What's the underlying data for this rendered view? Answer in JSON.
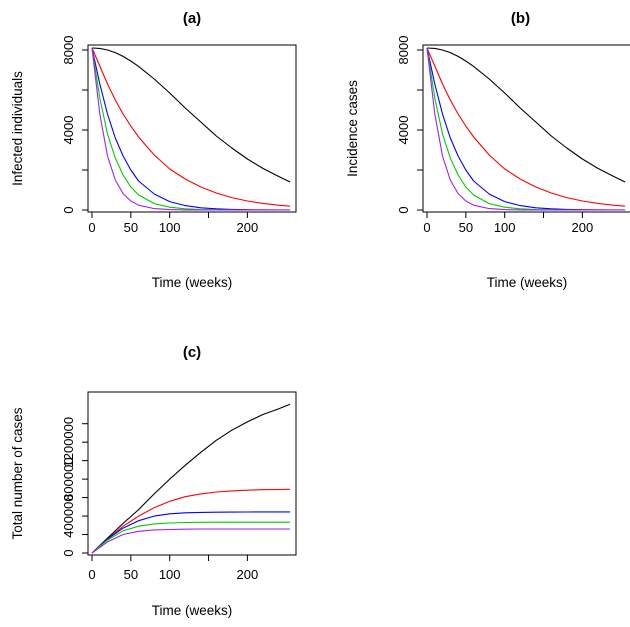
{
  "figure": {
    "colors": {
      "series": [
        "#000000",
        "#ff0000",
        "#0000ff",
        "#00cc00",
        "#a020f0"
      ],
      "axis": "#000000",
      "background": "#ffffff"
    }
  },
  "chart_data": [
    {
      "id": "a",
      "type": "line",
      "title": "(a)",
      "xlabel": "Time (weeks)",
      "ylabel": "Infected individuals",
      "xlim": [
        0,
        260
      ],
      "ylim": [
        0,
        8100
      ],
      "xticks": [
        0,
        50,
        100,
        200
      ],
      "xtick_labels": [
        "0",
        "50",
        "100",
        "200"
      ],
      "yticks": [
        0,
        4000,
        8000
      ],
      "ytick_labels": [
        "0",
        "4000",
        "8000"
      ],
      "grid": false,
      "series": [
        {
          "color": "#000000",
          "x": [
            0,
            10,
            20,
            30,
            40,
            50,
            60,
            80,
            100,
            120,
            140,
            160,
            180,
            200,
            220,
            240,
            255
          ],
          "y": [
            8100,
            8080,
            8000,
            7870,
            7680,
            7450,
            7180,
            6550,
            5850,
            5100,
            4400,
            3700,
            3100,
            2550,
            2080,
            1680,
            1400
          ]
        },
        {
          "color": "#ff0000",
          "x": [
            0,
            10,
            20,
            30,
            40,
            50,
            60,
            80,
            100,
            120,
            140,
            160,
            180,
            200,
            220,
            240,
            255
          ],
          "y": [
            8100,
            7200,
            6300,
            5500,
            4800,
            4200,
            3650,
            2750,
            2050,
            1550,
            1150,
            850,
            620,
            450,
            330,
            240,
            190
          ]
        },
        {
          "color": "#0000ff",
          "x": [
            0,
            10,
            20,
            30,
            40,
            50,
            60,
            80,
            100,
            120,
            140,
            160,
            180,
            200,
            220,
            240,
            255
          ],
          "y": [
            8100,
            6300,
            4800,
            3600,
            2700,
            2000,
            1450,
            800,
            420,
            220,
            110,
            60,
            30,
            15,
            10,
            5,
            5
          ]
        },
        {
          "color": "#00cc00",
          "x": [
            0,
            10,
            20,
            30,
            40,
            50,
            60,
            80,
            100,
            120,
            140,
            160,
            180,
            200,
            220,
            240,
            255
          ],
          "y": [
            8100,
            5600,
            3800,
            2600,
            1750,
            1150,
            750,
            320,
            140,
            60,
            25,
            10,
            5,
            0,
            0,
            0,
            0
          ]
        },
        {
          "color": "#a020f0",
          "x": [
            0,
            10,
            20,
            30,
            40,
            50,
            60,
            80,
            100,
            120,
            140,
            160,
            180,
            200,
            220,
            240,
            255
          ],
          "y": [
            8100,
            4800,
            2700,
            1500,
            820,
            450,
            240,
            70,
            20,
            5,
            0,
            0,
            0,
            0,
            0,
            0,
            0
          ]
        }
      ]
    },
    {
      "id": "b",
      "type": "line",
      "title": "(b)",
      "xlabel": "Time (weeks)",
      "ylabel": "Incidence cases",
      "xlim": [
        0,
        260
      ],
      "ylim": [
        0,
        8100
      ],
      "xticks": [
        0,
        50,
        100,
        200
      ],
      "xtick_labels": [
        "0",
        "50",
        "100",
        "200"
      ],
      "yticks": [
        0,
        4000,
        8000
      ],
      "ytick_labels": [
        "0",
        "4000",
        "8000"
      ],
      "grid": false,
      "series": [
        {
          "color": "#000000",
          "x": [
            0,
            10,
            20,
            30,
            40,
            50,
            60,
            80,
            100,
            120,
            140,
            160,
            180,
            200,
            220,
            240,
            255
          ],
          "y": [
            8100,
            8080,
            8000,
            7870,
            7680,
            7450,
            7180,
            6550,
            5850,
            5100,
            4400,
            3700,
            3100,
            2550,
            2080,
            1680,
            1400
          ]
        },
        {
          "color": "#ff0000",
          "x": [
            0,
            10,
            20,
            30,
            40,
            50,
            60,
            80,
            100,
            120,
            140,
            160,
            180,
            200,
            220,
            240,
            255
          ],
          "y": [
            8100,
            7200,
            6300,
            5500,
            4800,
            4200,
            3650,
            2750,
            2050,
            1550,
            1150,
            850,
            620,
            450,
            330,
            240,
            190
          ]
        },
        {
          "color": "#0000ff",
          "x": [
            0,
            10,
            20,
            30,
            40,
            50,
            60,
            80,
            100,
            120,
            140,
            160,
            180,
            200,
            220,
            240,
            255
          ],
          "y": [
            8100,
            6300,
            4800,
            3600,
            2700,
            2000,
            1450,
            800,
            420,
            220,
            110,
            60,
            30,
            15,
            10,
            5,
            5
          ]
        },
        {
          "color": "#00cc00",
          "x": [
            0,
            10,
            20,
            30,
            40,
            50,
            60,
            80,
            100,
            120,
            140,
            160,
            180,
            200,
            220,
            240,
            255
          ],
          "y": [
            8100,
            5600,
            3800,
            2600,
            1750,
            1150,
            750,
            320,
            140,
            60,
            25,
            10,
            5,
            0,
            0,
            0,
            0
          ]
        },
        {
          "color": "#a020f0",
          "x": [
            0,
            10,
            20,
            30,
            40,
            50,
            60,
            80,
            100,
            120,
            140,
            160,
            180,
            200,
            220,
            240,
            255
          ],
          "y": [
            8100,
            4800,
            2700,
            1500,
            820,
            450,
            240,
            70,
            20,
            5,
            0,
            0,
            0,
            0,
            0,
            0,
            0
          ]
        }
      ]
    },
    {
      "id": "c",
      "type": "line",
      "title": "(c)",
      "xlabel": "Time (weeks)",
      "ylabel": "Total number of cases",
      "xlim": [
        0,
        260
      ],
      "ylim": [
        0,
        1700000
      ],
      "xticks": [
        0,
        50,
        100,
        200
      ],
      "xtick_labels": [
        "0",
        "50",
        "100",
        "200"
      ],
      "yticks": [
        0,
        400000,
        800000,
        1200000
      ],
      "ytick_labels": [
        "0",
        "400000",
        "800000",
        "1200000"
      ],
      "grid": false,
      "series": [
        {
          "color": "#000000",
          "x": [
            0,
            20,
            40,
            60,
            80,
            100,
            120,
            140,
            160,
            180,
            200,
            220,
            240,
            255
          ],
          "y": [
            0,
            160000,
            320000,
            470000,
            640000,
            800000,
            950000,
            1090000,
            1220000,
            1330000,
            1420000,
            1500000,
            1560000,
            1610000
          ]
        },
        {
          "color": "#ff0000",
          "x": [
            0,
            20,
            40,
            60,
            80,
            100,
            120,
            140,
            160,
            180,
            200,
            220,
            240,
            255
          ],
          "y": [
            0,
            150000,
            290000,
            400000,
            490000,
            560000,
            610000,
            640000,
            660000,
            672000,
            680000,
            685000,
            688000,
            690000
          ]
        },
        {
          "color": "#0000ff",
          "x": [
            0,
            20,
            40,
            60,
            80,
            100,
            120,
            140,
            160,
            180,
            200,
            220,
            240,
            255
          ],
          "y": [
            0,
            150000,
            270000,
            350000,
            400000,
            425000,
            435000,
            440000,
            442000,
            443000,
            444000,
            445000,
            445000,
            445000
          ]
        },
        {
          "color": "#00cc00",
          "x": [
            0,
            20,
            40,
            60,
            80,
            100,
            120,
            140,
            160,
            180,
            200,
            220,
            240,
            255
          ],
          "y": [
            0,
            140000,
            240000,
            290000,
            315000,
            325000,
            330000,
            332000,
            333000,
            333000,
            333000,
            333000,
            333000,
            333000
          ]
        },
        {
          "color": "#a020f0",
          "x": [
            0,
            20,
            40,
            60,
            80,
            100,
            120,
            140,
            160,
            180,
            200,
            220,
            240,
            255
          ],
          "y": [
            0,
            120000,
            200000,
            235000,
            250000,
            255000,
            258000,
            260000,
            260000,
            260000,
            260000,
            260000,
            260000,
            260000
          ]
        }
      ]
    }
  ]
}
